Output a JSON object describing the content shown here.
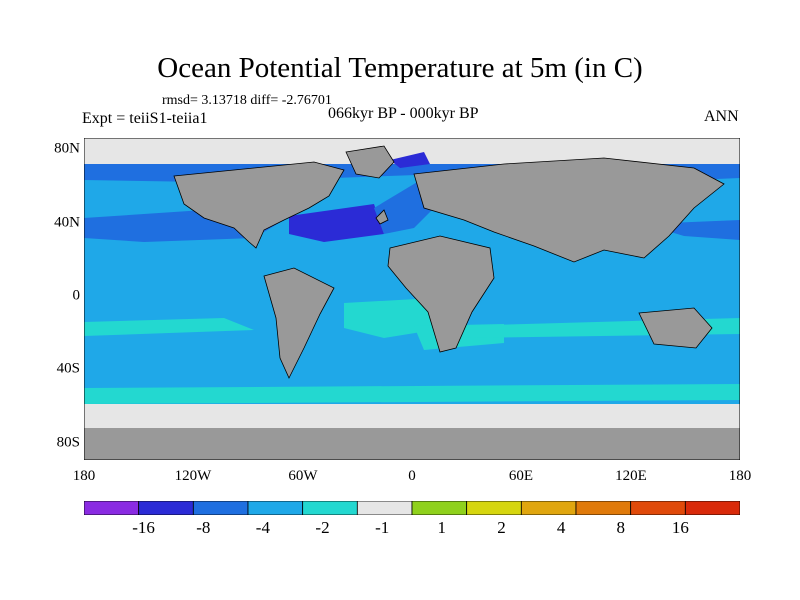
{
  "title": "Ocean Potential Temperature at 5m (in C)",
  "stats": "rmsd= 3.13718 diff= -2.76701",
  "experiment": "Expt = teiiS1-teiia1",
  "period": "066kyr BP - 000kyr BP",
  "season": "ANN",
  "map": {
    "projection": "cylindrical equidistant",
    "lon_range": [
      -180,
      180
    ],
    "lat_range": [
      -90,
      90
    ],
    "land_color": "#999999",
    "no_change_color": "#e6e6e6",
    "xticks": [
      "180",
      "120W",
      "60W",
      "0",
      "60E",
      "120E",
      "180"
    ],
    "yticks": [
      "80N",
      "40N",
      "0",
      "40S",
      "80S"
    ]
  },
  "colorbar": {
    "colors": [
      "#8a2be2",
      "#2b2bd6",
      "#1f6fe0",
      "#1fa8e8",
      "#23d8d0",
      "#e6e6e6",
      "#8fd11c",
      "#d6d60f",
      "#e0a60f",
      "#e07a0a",
      "#e04a0a",
      "#d92a0a"
    ],
    "labels": [
      "-16",
      "-8",
      "-4",
      "-2",
      "-1",
      "1",
      "2",
      "4",
      "8",
      "16"
    ]
  }
}
